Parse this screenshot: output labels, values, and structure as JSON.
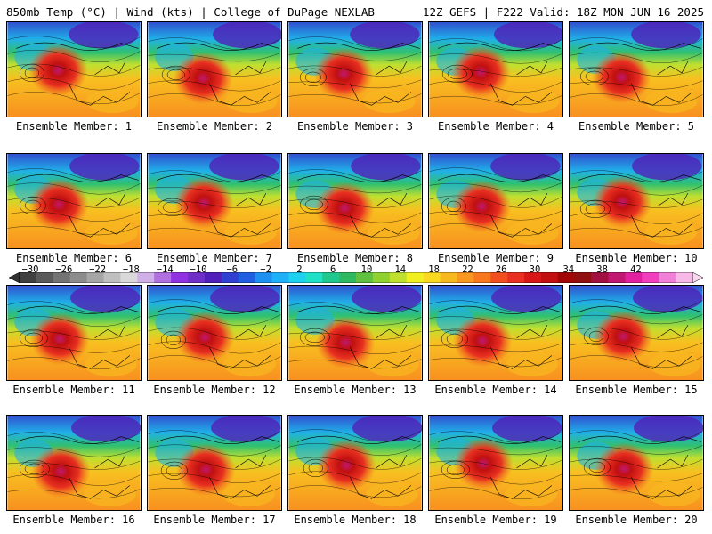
{
  "header": {
    "left_title": "850mb Temp (°C) | Wind (kts) | College of DuPage NEXLAB",
    "right_title": "12Z GEFS | F222 Valid: 18Z MON JUN 16 2025"
  },
  "members": [
    {
      "label": "Ensemble Member: 1"
    },
    {
      "label": "Ensemble Member: 2"
    },
    {
      "label": "Ensemble Member: 3"
    },
    {
      "label": "Ensemble Member: 4"
    },
    {
      "label": "Ensemble Member: 5"
    },
    {
      "label": "Ensemble Member: 6"
    },
    {
      "label": "Ensemble Member: 7"
    },
    {
      "label": "Ensemble Member: 8"
    },
    {
      "label": "Ensemble Member: 9"
    },
    {
      "label": "Ensemble Member: 10"
    },
    {
      "label": "Ensemble Member: 11"
    },
    {
      "label": "Ensemble Member: 12"
    },
    {
      "label": "Ensemble Member: 13"
    },
    {
      "label": "Ensemble Member: 14"
    },
    {
      "label": "Ensemble Member: 15"
    },
    {
      "label": "Ensemble Member: 16"
    },
    {
      "label": "Ensemble Member: 17"
    },
    {
      "label": "Ensemble Member: 18"
    },
    {
      "label": "Ensemble Member: 19"
    },
    {
      "label": "Ensemble Member: 20"
    }
  ],
  "colorbar": {
    "labels": [
      "−30",
      "−26",
      "−22",
      "−18",
      "−14",
      "−10",
      "−6",
      "−2",
      "2",
      "6",
      "10",
      "14",
      "18",
      "22",
      "26",
      "30",
      "34",
      "38",
      "42"
    ],
    "colors": [
      "#404040",
      "#5a5a5a",
      "#737373",
      "#8c8c8c",
      "#a6a6a6",
      "#bfbfbf",
      "#d9d9d9",
      "#d0b0e8",
      "#b070e0",
      "#9030e0",
      "#7030c8",
      "#5020b8",
      "#3040d0",
      "#2060e0",
      "#2090f0",
      "#20b0f8",
      "#20d0f0",
      "#20e0c8",
      "#20c890",
      "#30b860",
      "#60c040",
      "#90d030",
      "#c0e030",
      "#f0f020",
      "#f8d820",
      "#f8b820",
      "#f89820",
      "#f87820",
      "#f05020",
      "#e83020",
      "#d81818",
      "#c01010",
      "#a00808",
      "#901010",
      "#a01040",
      "#c01870",
      "#e020a0",
      "#f040c0",
      "#f080d8",
      "#f8b8e8"
    ]
  }
}
